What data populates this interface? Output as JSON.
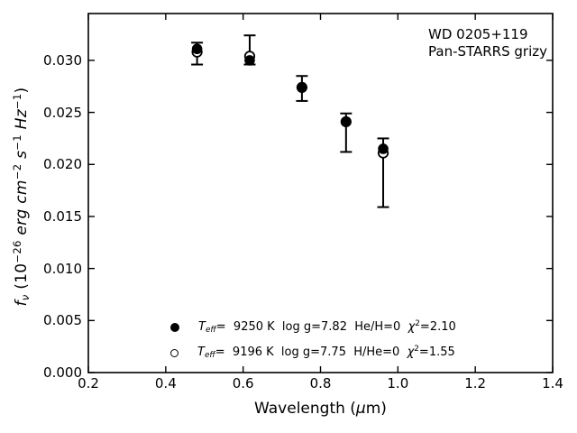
{
  "figure": {
    "background": "#ffffff",
    "axis_color": "#000000",
    "marker_color": "#000000",
    "annotation": {
      "line1": "WD 0205+119",
      "line2": "Pan-STARRS grizy"
    }
  },
  "chart_data": {
    "type": "scatter",
    "title": "",
    "xlabel": "Wavelength (μm)",
    "ylabel": "f_ν (10^−26 erg cm^−2 s^−1 Hz^−1)",
    "xlabel_segments": [
      {
        "t": "Wavelength (",
        "s": ""
      },
      {
        "t": "μ",
        "s": "i"
      },
      {
        "t": "m)",
        "s": ""
      }
    ],
    "ylabel_segments": [
      {
        "t": "f",
        "s": "i"
      },
      {
        "t": "ν",
        "s": "isub"
      },
      {
        "t": " (10",
        "s": ""
      },
      {
        "t": "−26",
        "s": "sup"
      },
      {
        "t": " ",
        "s": ""
      },
      {
        "t": "erg cm",
        "s": "i"
      },
      {
        "t": "−2",
        "s": "sup"
      },
      {
        "t": " ",
        "s": ""
      },
      {
        "t": "s",
        "s": "i"
      },
      {
        "t": "−1",
        "s": "sup"
      },
      {
        "t": " ",
        "s": ""
      },
      {
        "t": "Hz",
        "s": "i"
      },
      {
        "t": "−1",
        "s": "sup"
      },
      {
        "t": ")",
        "s": ""
      }
    ],
    "xlim": [
      0.2,
      1.4
    ],
    "ylim": [
      0.0,
      0.0345
    ],
    "xticks": [
      0.2,
      0.4,
      0.6,
      0.8,
      1.0,
      1.2,
      1.4
    ],
    "xtick_labels": [
      "0.2",
      "0.4",
      "0.6",
      "0.8",
      "1.0",
      "1.2",
      "1.4"
    ],
    "yticks": [
      0.0,
      0.005,
      0.01,
      0.015,
      0.02,
      0.025,
      0.03
    ],
    "ytick_labels": [
      "0.000",
      "0.005",
      "0.010",
      "0.015",
      "0.020",
      "0.025",
      "0.030"
    ],
    "grid": false,
    "tick_style": "inward, mirrored on all four sides",
    "bands": [
      "g",
      "r",
      "i",
      "z",
      "y"
    ],
    "x": [
      0.481,
      0.617,
      0.752,
      0.866,
      0.962
    ],
    "series": [
      {
        "name": "model Teff=9250 K log g=7.82 He/H=0",
        "marker": "filled-circle",
        "values": [
          0.0311,
          0.03,
          0.0274,
          0.0241,
          0.0215
        ]
      },
      {
        "name": "model Teff=9196 K log g=7.75 H/He=0",
        "marker": "open-circle",
        "values": [
          0.0308,
          0.0304,
          0.0274,
          0.0241,
          0.0211
        ]
      }
    ],
    "error_bars": {
      "name": "observed Pan-STARRS grizy fluxes",
      "top": [
        0.0317,
        0.0324,
        0.0285,
        0.0249,
        0.0225
      ],
      "bottom": [
        0.0296,
        0.0296,
        0.0261,
        0.0212,
        0.0159
      ]
    },
    "legend": {
      "position": "lower left inside axes",
      "entries": [
        {
          "marker": "filled-circle",
          "segments": [
            {
              "t": "T",
              "s": "i"
            },
            {
              "t": "eff",
              "s": "isub"
            },
            {
              "t": "=  9250 K  log g=7.82  He/H=0  ",
              "s": ""
            },
            {
              "t": "χ",
              "s": "i"
            },
            {
              "t": "2",
              "s": "sup"
            },
            {
              "t": "=2.10",
              "s": ""
            }
          ]
        },
        {
          "marker": "open-circle",
          "segments": [
            {
              "t": "T",
              "s": "i"
            },
            {
              "t": "eff",
              "s": "isub"
            },
            {
              "t": "=  9196 K  log g=7.75  H/He=0  ",
              "s": ""
            },
            {
              "t": "χ",
              "s": "i"
            },
            {
              "t": "2",
              "s": "sup"
            },
            {
              "t": "=1.55",
              "s": ""
            }
          ]
        }
      ]
    }
  }
}
